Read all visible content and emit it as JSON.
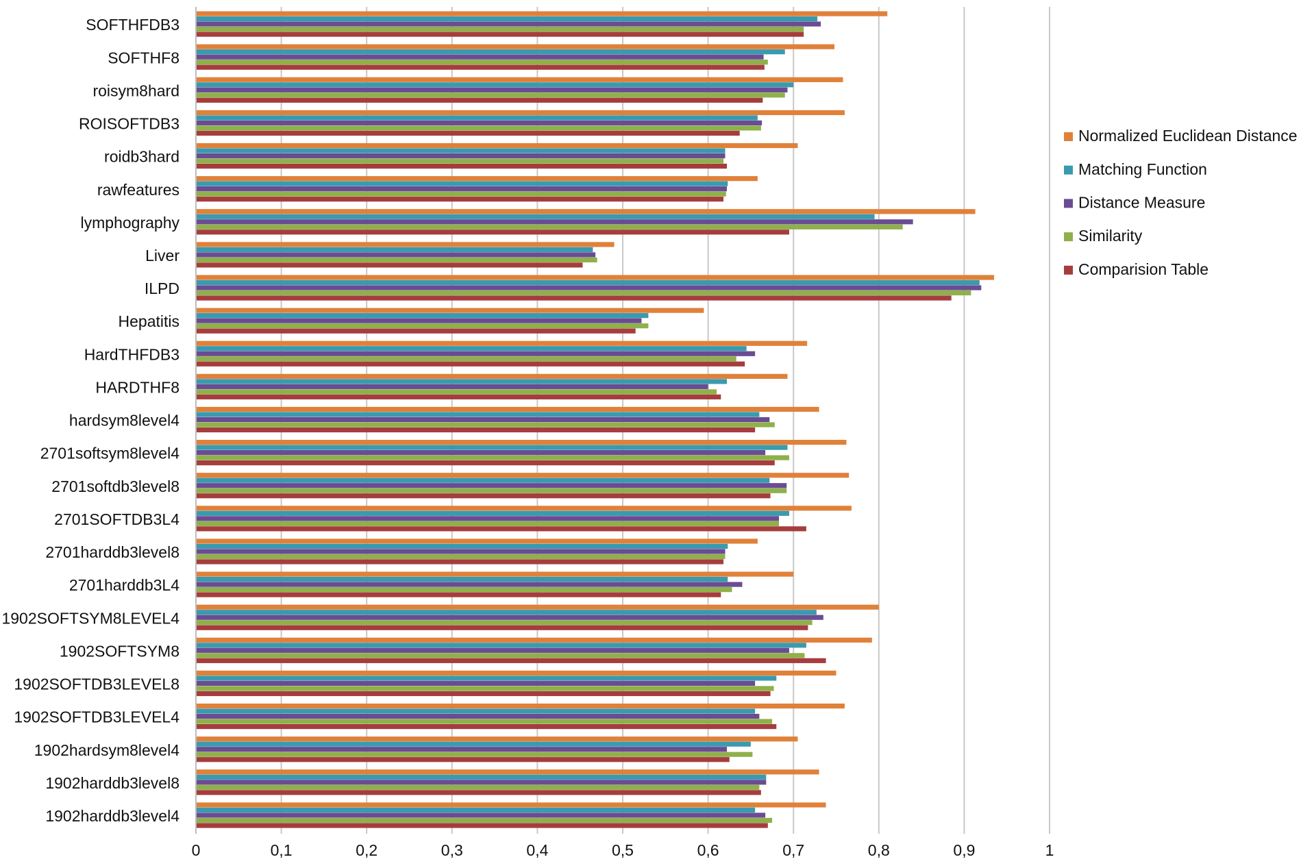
{
  "chart_data": {
    "type": "bar",
    "orientation": "horizontal",
    "title": "",
    "xlabel": "",
    "ylabel": "",
    "xlim": [
      0,
      1
    ],
    "xticks": [
      "0",
      "0,1",
      "0,2",
      "0,3",
      "0,4",
      "0,5",
      "0,6",
      "0,7",
      "0,8",
      "0,9",
      "1"
    ],
    "grid": "vertical",
    "legend_position": "right",
    "categories": [
      "SOFTHFDB3",
      "SOFTHF8",
      "roisym8hard",
      "ROISOFTDB3",
      "roidb3hard",
      "rawfeatures",
      "lymphography",
      "Liver",
      "ILPD",
      "Hepatitis",
      "HardTHFDB3",
      "HARDTHF8",
      "hardsym8level4",
      "2701softsym8level4",
      "2701softdb3level8",
      "2701SOFTDB3L4",
      "2701harddb3level8",
      "2701harddb3L4",
      "1902SOFTSYM8LEVEL4",
      "1902SOFTSYM8",
      "1902SOFTDB3LEVEL8",
      "1902SOFTDB3LEVEL4",
      "1902hardsym8level4",
      "1902harddb3level8",
      "1902harddb3level4"
    ],
    "series": [
      {
        "name": "Normalized Euclidean Distance",
        "color": "#E0813A",
        "values": [
          0.81,
          0.748,
          0.758,
          0.76,
          0.705,
          0.658,
          0.913,
          0.49,
          0.935,
          0.595,
          0.716,
          0.693,
          0.73,
          0.762,
          0.765,
          0.768,
          0.658,
          0.7,
          0.8,
          0.792,
          0.75,
          0.76,
          0.705,
          0.73,
          0.738
        ]
      },
      {
        "name": "Matching Function",
        "color": "#3A9AAE",
        "values": [
          0.728,
          0.69,
          0.7,
          0.658,
          0.62,
          0.623,
          0.795,
          0.465,
          0.918,
          0.53,
          0.645,
          0.622,
          0.66,
          0.693,
          0.672,
          0.695,
          0.623,
          0.623,
          0.727,
          0.715,
          0.68,
          0.655,
          0.65,
          0.668,
          0.655
        ]
      },
      {
        "name": "Distance Measure",
        "color": "#6A4C93",
        "values": [
          0.732,
          0.665,
          0.693,
          0.663,
          0.62,
          0.622,
          0.84,
          0.468,
          0.92,
          0.522,
          0.655,
          0.6,
          0.672,
          0.667,
          0.692,
          0.683,
          0.62,
          0.64,
          0.735,
          0.695,
          0.655,
          0.66,
          0.622,
          0.668,
          0.667
        ]
      },
      {
        "name": "Similarity",
        "color": "#8FB04A",
        "values": [
          0.712,
          0.67,
          0.69,
          0.662,
          0.618,
          0.621,
          0.828,
          0.47,
          0.908,
          0.53,
          0.633,
          0.61,
          0.678,
          0.695,
          0.692,
          0.683,
          0.62,
          0.628,
          0.722,
          0.713,
          0.677,
          0.675,
          0.652,
          0.66,
          0.675
        ]
      },
      {
        "name": "Comparision Table",
        "color": "#A63D3D",
        "values": [
          0.712,
          0.666,
          0.664,
          0.637,
          0.622,
          0.618,
          0.695,
          0.453,
          0.885,
          0.515,
          0.643,
          0.615,
          0.655,
          0.678,
          0.673,
          0.715,
          0.618,
          0.615,
          0.717,
          0.738,
          0.673,
          0.68,
          0.625,
          0.662,
          0.67
        ]
      }
    ]
  }
}
